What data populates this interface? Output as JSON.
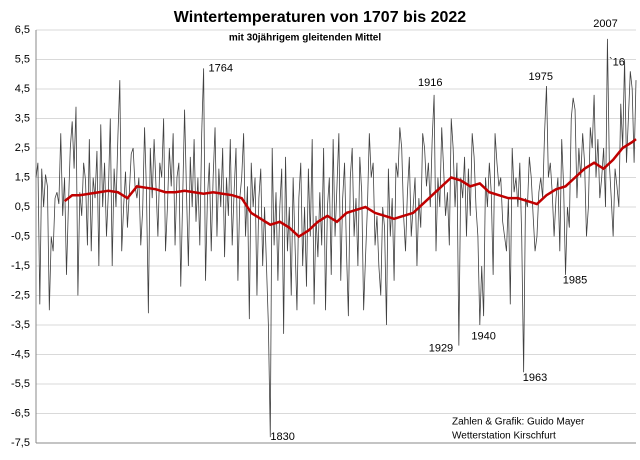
{
  "chart_data": {
    "type": "line",
    "title": "Wintertemperaturen von 1707 bis 2022",
    "subtitle": "mit 30jährigem gleitenden Mittel",
    "credit": [
      "Zahlen & Grafik: Guido Mayer",
      "Wetterstation Kirschfurt"
    ],
    "xlim": [
      1707,
      2022
    ],
    "ylim": [
      -7.5,
      6.5
    ],
    "yticks": [
      {
        "value": 6.5,
        "label": "6,5"
      },
      {
        "value": 5.5,
        "label": "5,5"
      },
      {
        "value": 4.5,
        "label": "4,5"
      },
      {
        "value": 3.5,
        "label": "3,5"
      },
      {
        "value": 2.5,
        "label": "2,5"
      },
      {
        "value": 1.5,
        "label": "1,5"
      },
      {
        "value": 0.5,
        "label": "0,5"
      },
      {
        "value": -0.5,
        "label": "-0,5"
      },
      {
        "value": -1.5,
        "label": "-1,5"
      },
      {
        "value": -2.5,
        "label": "-2,5"
      },
      {
        "value": -3.5,
        "label": "-3,5"
      },
      {
        "value": -4.5,
        "label": "-4,5"
      },
      {
        "value": -5.5,
        "label": "-5,5"
      },
      {
        "value": -6.5,
        "label": "-6,5"
      },
      {
        "value": -7.5,
        "label": "-7,5"
      }
    ],
    "grid": true,
    "x": [
      1707,
      1708,
      1709,
      1710,
      1711,
      1712,
      1713,
      1714,
      1715,
      1716,
      1717,
      1718,
      1719,
      1720,
      1721,
      1722,
      1723,
      1724,
      1725,
      1726,
      1727,
      1728,
      1729,
      1730,
      1731,
      1732,
      1733,
      1734,
      1735,
      1736,
      1737,
      1738,
      1739,
      1740,
      1741,
      1742,
      1743,
      1744,
      1745,
      1746,
      1747,
      1748,
      1749,
      1750,
      1751,
      1752,
      1753,
      1754,
      1755,
      1756,
      1757,
      1758,
      1759,
      1760,
      1761,
      1762,
      1763,
      1764,
      1765,
      1766,
      1767,
      1768,
      1769,
      1770,
      1771,
      1772,
      1773,
      1774,
      1775,
      1776,
      1777,
      1778,
      1779,
      1780,
      1781,
      1782,
      1783,
      1784,
      1785,
      1786,
      1787,
      1788,
      1789,
      1790,
      1791,
      1792,
      1793,
      1794,
      1795,
      1796,
      1797,
      1798,
      1799,
      1800,
      1801,
      1802,
      1803,
      1804,
      1805,
      1806,
      1807,
      1808,
      1809,
      1810,
      1811,
      1812,
      1813,
      1814,
      1815,
      1816,
      1817,
      1818,
      1819,
      1820,
      1821,
      1822,
      1823,
      1824,
      1825,
      1826,
      1827,
      1828,
      1829,
      1830,
      1831,
      1832,
      1833,
      1834,
      1835,
      1836,
      1837,
      1838,
      1839,
      1840,
      1841,
      1842,
      1843,
      1844,
      1845,
      1846,
      1847,
      1848,
      1849,
      1850,
      1851,
      1852,
      1853,
      1854,
      1855,
      1856,
      1857,
      1858,
      1859,
      1860,
      1861,
      1862,
      1863,
      1864,
      1865,
      1866,
      1867,
      1868,
      1869,
      1870,
      1871,
      1872,
      1873,
      1874,
      1875,
      1876,
      1877,
      1878,
      1879,
      1880,
      1881,
      1882,
      1883,
      1884,
      1885,
      1886,
      1887,
      1888,
      1889,
      1890,
      1891,
      1892,
      1893,
      1894,
      1895,
      1896,
      1897,
      1898,
      1899,
      1900,
      1901,
      1902,
      1903,
      1904,
      1905,
      1906,
      1907,
      1908,
      1909,
      1910,
      1911,
      1912,
      1913,
      1914,
      1915,
      1916,
      1917,
      1918,
      1919,
      1920,
      1921,
      1922,
      1923,
      1924,
      1925,
      1926,
      1927,
      1928,
      1929,
      1930,
      1931,
      1932,
      1933,
      1934,
      1935,
      1936,
      1937,
      1938,
      1939,
      1940,
      1941,
      1942,
      1943,
      1944,
      1945,
      1946,
      1947,
      1948,
      1949,
      1950,
      1951,
      1952,
      1953,
      1954,
      1955,
      1956,
      1957,
      1958,
      1959,
      1960,
      1961,
      1962,
      1963,
      1964,
      1965,
      1966,
      1967,
      1968,
      1969,
      1970,
      1971,
      1972,
      1973,
      1974,
      1975,
      1976,
      1977,
      1978,
      1979,
      1980,
      1981,
      1982,
      1983,
      1984,
      1985,
      1986,
      1987,
      1988,
      1989,
      1990,
      1991,
      1992,
      1993,
      1994,
      1995,
      1996,
      1997,
      1998,
      1999,
      2000,
      2001,
      2002,
      2003,
      2004,
      2005,
      2006,
      2007,
      2008,
      2009,
      2010,
      2011,
      2012,
      2013,
      2014,
      2015,
      2016,
      2017,
      2018,
      2019,
      2020,
      2021,
      2022
    ],
    "series": [
      {
        "name": "Wintertemperatur",
        "color": "#404040",
        "values": [
          1.5,
          2.0,
          -2.8,
          1.8,
          0.5,
          1.6,
          1.2,
          -3.0,
          -0.5,
          -1.0,
          0.8,
          1.0,
          0.6,
          3.0,
          0.2,
          1.5,
          -1.8,
          0.5,
          2.5,
          3.4,
          1.8,
          3.9,
          -2.5,
          1.0,
          0.2,
          2.0,
          1.4,
          -0.8,
          2.8,
          -1.0,
          1.5,
          0.8,
          2.4,
          -1.5,
          3.3,
          0.5,
          2.0,
          -0.5,
          1.0,
          3.5,
          -1.5,
          1.8,
          0.5,
          2.9,
          4.8,
          -1.0,
          0.5,
          1.7,
          -0.2,
          1.0,
          2.3,
          2.5,
          1.2,
          0.8,
          1.5,
          -0.8,
          0.4,
          3.2,
          1.0,
          -3.1,
          2.5,
          0.8,
          2.8,
          1.2,
          -0.5,
          2.0,
          1.5,
          3.5,
          -1.0,
          0.5,
          2.5,
          1.2,
          3.0,
          -0.8,
          1.5,
          2.0,
          -2.2,
          0.8,
          3.8,
          1.0,
          -1.5,
          2.2,
          0.5,
          2.8,
          0.0,
          1.5,
          -0.8,
          3.0,
          5.2,
          -2.0,
          0.8,
          2.0,
          -1.0,
          1.5,
          3.2,
          -0.5,
          1.8,
          0.5,
          2.5,
          -1.2,
          1.5,
          0.2,
          2.8,
          -0.8,
          1.0,
          2.5,
          -2.0,
          0.8,
          1.5,
          3.0,
          -0.5,
          1.2,
          -3.3,
          2.0,
          0.5,
          1.5,
          -2.5,
          0.8,
          1.8,
          -1.5,
          0.5,
          -1.5,
          -3.5,
          -7.3,
          2.5,
          -0.8,
          1.0,
          -2.0,
          0.5,
          1.8,
          -3.8,
          2.2,
          -1.0,
          0.5,
          -2.5,
          1.5,
          -0.8,
          -3.0,
          0.8,
          2.0,
          -1.5,
          0.5,
          -2.2,
          1.8,
          -0.5,
          2.8,
          -2.8,
          0.2,
          -1.2,
          1.0,
          -0.8,
          2.5,
          -3.0,
          0.5,
          1.5,
          -1.8,
          2.8,
          -0.5,
          1.2,
          3.0,
          -2.0,
          0.8,
          2.0,
          -1.0,
          -3.2,
          1.5,
          2.5,
          -0.5,
          0.8,
          -1.5,
          2.2,
          1.0,
          -3.0,
          -1.2,
          0.5,
          3.0,
          1.5,
          2.0,
          -0.8,
          0.2,
          -1.5,
          -2.5,
          0.5,
          -0.2,
          -3.5,
          1.8,
          -0.5,
          0.8,
          -2.0,
          2.0,
          1.5,
          3.2,
          2.5,
          0.2,
          -1.0,
          1.0,
          2.2,
          -0.5,
          0.5,
          1.5,
          -1.5,
          0.8,
          -0.2,
          3.0,
          2.5,
          1.2,
          2.0,
          0.5,
          2.8,
          4.3,
          -1.0,
          1.5,
          0.5,
          3.2,
          1.8,
          0.2,
          1.0,
          -0.8,
          3.5,
          2.5,
          0.5,
          2.0,
          -4.2,
          1.5,
          0.8,
          2.2,
          -0.5,
          1.8,
          0.2,
          3.0,
          2.2,
          0.5,
          -0.5,
          -3.5,
          -1.5,
          -3.2,
          1.5,
          0.5,
          2.0,
          1.0,
          -1.8,
          3.0,
          2.0,
          1.2,
          1.5,
          0.0,
          -0.5,
          -1.0,
          0.8,
          -2.8,
          2.5,
          1.0,
          1.5,
          0.5,
          2.0,
          -0.5,
          -5.1,
          0.8,
          0.5,
          2.2,
          1.5,
          0.2,
          -1.0,
          -0.5,
          1.0,
          1.5,
          0.8,
          3.0,
          4.6,
          1.5,
          2.0,
          1.0,
          -0.5,
          0.8,
          1.5,
          -1.0,
          2.8,
          1.2,
          -1.8,
          0.5,
          -0.2,
          3.5,
          4.2,
          3.8,
          0.8,
          2.5,
          1.5,
          3.0,
          2.0,
          -0.5,
          0.5,
          3.2,
          2.5,
          4.3,
          1.5,
          2.8,
          0.8,
          1.5,
          2.5,
          0.5,
          6.2,
          2.0,
          0.8,
          -0.5,
          1.8,
          1.2,
          0.5,
          4.0,
          2.5,
          5.5,
          2.0,
          3.5,
          5.1,
          4.5,
          2.0,
          4.8
        ]
      },
      {
        "name": "30jähriges gleitendes Mittel",
        "color": "#c00000",
        "x": [
          1722,
          1726,
          1730,
          1735,
          1740,
          1745,
          1750,
          1755,
          1760,
          1765,
          1770,
          1775,
          1780,
          1785,
          1790,
          1795,
          1800,
          1805,
          1810,
          1815,
          1820,
          1825,
          1830,
          1835,
          1840,
          1845,
          1850,
          1855,
          1860,
          1865,
          1870,
          1875,
          1880,
          1885,
          1890,
          1895,
          1900,
          1905,
          1910,
          1915,
          1920,
          1925,
          1930,
          1935,
          1940,
          1945,
          1950,
          1955,
          1960,
          1965,
          1970,
          1975,
          1980,
          1985,
          1990,
          1995,
          2000,
          2005,
          2010,
          2015,
          2020,
          2022
        ],
        "values": [
          0.7,
          0.9,
          0.9,
          0.95,
          1.0,
          1.05,
          1.0,
          0.8,
          1.2,
          1.15,
          1.1,
          1.0,
          1.0,
          1.05,
          1.0,
          0.95,
          1.0,
          0.95,
          0.9,
          0.8,
          0.3,
          0.1,
          -0.1,
          0.0,
          -0.2,
          -0.5,
          -0.3,
          0.0,
          0.2,
          0.0,
          0.3,
          0.4,
          0.5,
          0.3,
          0.2,
          0.1,
          0.2,
          0.3,
          0.6,
          0.9,
          1.2,
          1.5,
          1.4,
          1.2,
          1.3,
          1.0,
          0.9,
          0.8,
          0.8,
          0.7,
          0.6,
          0.9,
          1.1,
          1.2,
          1.5,
          1.8,
          2.0,
          1.8,
          2.1,
          2.5,
          2.7,
          2.8
        ]
      }
    ],
    "annotations": [
      {
        "text": "1764",
        "x": 1804,
        "y": 5.2
      },
      {
        "text": "1916",
        "x": 1914,
        "y": 4.7
      },
      {
        "text": "1975",
        "x": 1972,
        "y": 4.9
      },
      {
        "text": "2007",
        "x": 2006,
        "y": 6.7
      },
      {
        "text": "`16",
        "x": 2012,
        "y": 5.4
      },
      {
        "text": "1830",
        "x": 1836.5,
        "y": -7.3
      },
      {
        "text": "1929",
        "x": 1919.6,
        "y": -4.3
      },
      {
        "text": "1940",
        "x": 1942,
        "y": -3.9
      },
      {
        "text": "1963",
        "x": 1969,
        "y": -5.3
      },
      {
        "text": "1985",
        "x": 1990,
        "y": -2.0
      }
    ]
  }
}
